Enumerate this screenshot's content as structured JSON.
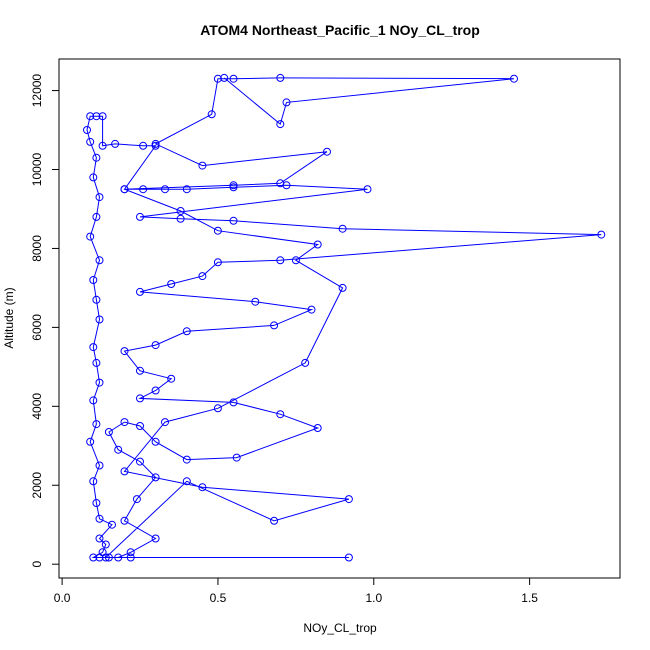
{
  "chart_data": {
    "type": "scatter",
    "title": "ATOM4 Northeast_Pacific_1 NOy_CL_trop",
    "xlabel": "NOy_CL_trop",
    "ylabel": "Altitude (m)",
    "xlim": [
      -0.01,
      1.79
    ],
    "ylim": [
      -350,
      12800
    ],
    "xticks": [
      0,
      0.5,
      1,
      1.5
    ],
    "xtick_labels": [
      "0.0",
      "0.5",
      "1.0",
      "1.5"
    ],
    "yticks": [
      0,
      2000,
      4000,
      6000,
      8000,
      10000,
      12000
    ],
    "ytick_labels": [
      "0",
      "2000",
      "4000",
      "6000",
      "8000",
      "10000",
      "12000"
    ],
    "grid": false,
    "legend": "none",
    "series_color": "#0000ff",
    "marker": "open-circle",
    "connected": true,
    "points": [
      [
        0.92,
        170
      ],
      [
        0.22,
        170
      ],
      [
        0.15,
        170
      ],
      [
        0.12,
        170
      ],
      [
        0.1,
        170
      ],
      [
        0.13,
        300
      ],
      [
        0.14,
        500
      ],
      [
        0.12,
        650
      ],
      [
        0.16,
        1000
      ],
      [
        0.12,
        1150
      ],
      [
        0.11,
        1550
      ],
      [
        0.1,
        2100
      ],
      [
        0.12,
        2500
      ],
      [
        0.09,
        3100
      ],
      [
        0.11,
        3550
      ],
      [
        0.1,
        4150
      ],
      [
        0.12,
        4600
      ],
      [
        0.11,
        5100
      ],
      [
        0.1,
        5500
      ],
      [
        0.12,
        6200
      ],
      [
        0.11,
        6700
      ],
      [
        0.1,
        7200
      ],
      [
        0.12,
        7700
      ],
      [
        0.09,
        8300
      ],
      [
        0.11,
        8800
      ],
      [
        0.12,
        9300
      ],
      [
        0.1,
        9800
      ],
      [
        0.11,
        10300
      ],
      [
        0.09,
        10700
      ],
      [
        0.08,
        11000
      ],
      [
        0.09,
        11350
      ],
      [
        0.11,
        11350
      ],
      [
        0.13,
        11350
      ],
      [
        0.13,
        10600
      ],
      [
        0.17,
        10650
      ],
      [
        0.26,
        10600
      ],
      [
        0.3,
        10600
      ],
      [
        0.2,
        9500
      ],
      [
        0.26,
        9500
      ],
      [
        0.33,
        9500
      ],
      [
        0.4,
        9500
      ],
      [
        0.55,
        9550
      ],
      [
        0.72,
        9600
      ],
      [
        0.98,
        9500
      ],
      [
        0.25,
        8800
      ],
      [
        0.38,
        8750
      ],
      [
        0.55,
        8700
      ],
      [
        0.9,
        8500
      ],
      [
        1.73,
        8350
      ],
      [
        0.7,
        7700
      ],
      [
        0.5,
        7650
      ],
      [
        0.45,
        7300
      ],
      [
        0.35,
        7100
      ],
      [
        0.25,
        6900
      ],
      [
        0.62,
        6650
      ],
      [
        0.8,
        6450
      ],
      [
        0.68,
        6050
      ],
      [
        0.4,
        5900
      ],
      [
        0.3,
        5550
      ],
      [
        0.2,
        5400
      ],
      [
        0.25,
        4900
      ],
      [
        0.35,
        4700
      ],
      [
        0.3,
        4400
      ],
      [
        0.25,
        4200
      ],
      [
        0.55,
        4100
      ],
      [
        0.7,
        3800
      ],
      [
        0.82,
        3450
      ],
      [
        0.56,
        2700
      ],
      [
        0.4,
        2650
      ],
      [
        0.3,
        3100
      ],
      [
        0.25,
        3500
      ],
      [
        0.2,
        3600
      ],
      [
        0.15,
        3350
      ],
      [
        0.18,
        2900
      ],
      [
        0.25,
        2600
      ],
      [
        0.3,
        2200
      ],
      [
        0.24,
        1650
      ],
      [
        0.2,
        1100
      ],
      [
        0.3,
        650
      ],
      [
        0.22,
        300
      ],
      [
        0.18,
        170
      ],
      [
        0.14,
        170
      ],
      [
        0.4,
        2100
      ],
      [
        0.68,
        1100
      ],
      [
        0.92,
        1650
      ],
      [
        0.45,
        1950
      ],
      [
        0.2,
        2350
      ],
      [
        0.33,
        3600
      ],
      [
        0.5,
        3950
      ],
      [
        0.78,
        5100
      ],
      [
        0.9,
        7000
      ],
      [
        0.75,
        7700
      ],
      [
        0.82,
        8100
      ],
      [
        0.5,
        8450
      ],
      [
        0.38,
        8950
      ],
      [
        0.2,
        9500
      ],
      [
        0.55,
        9600
      ],
      [
        0.7,
        9650
      ],
      [
        0.85,
        10450
      ],
      [
        0.45,
        10100
      ],
      [
        0.3,
        10650
      ],
      [
        0.48,
        11400
      ],
      [
        0.5,
        12300
      ],
      [
        0.55,
        12300
      ],
      [
        0.7,
        12320
      ],
      [
        1.45,
        12300
      ],
      [
        0.72,
        11700
      ],
      [
        0.7,
        11150
      ],
      [
        0.52,
        12320
      ]
    ]
  }
}
